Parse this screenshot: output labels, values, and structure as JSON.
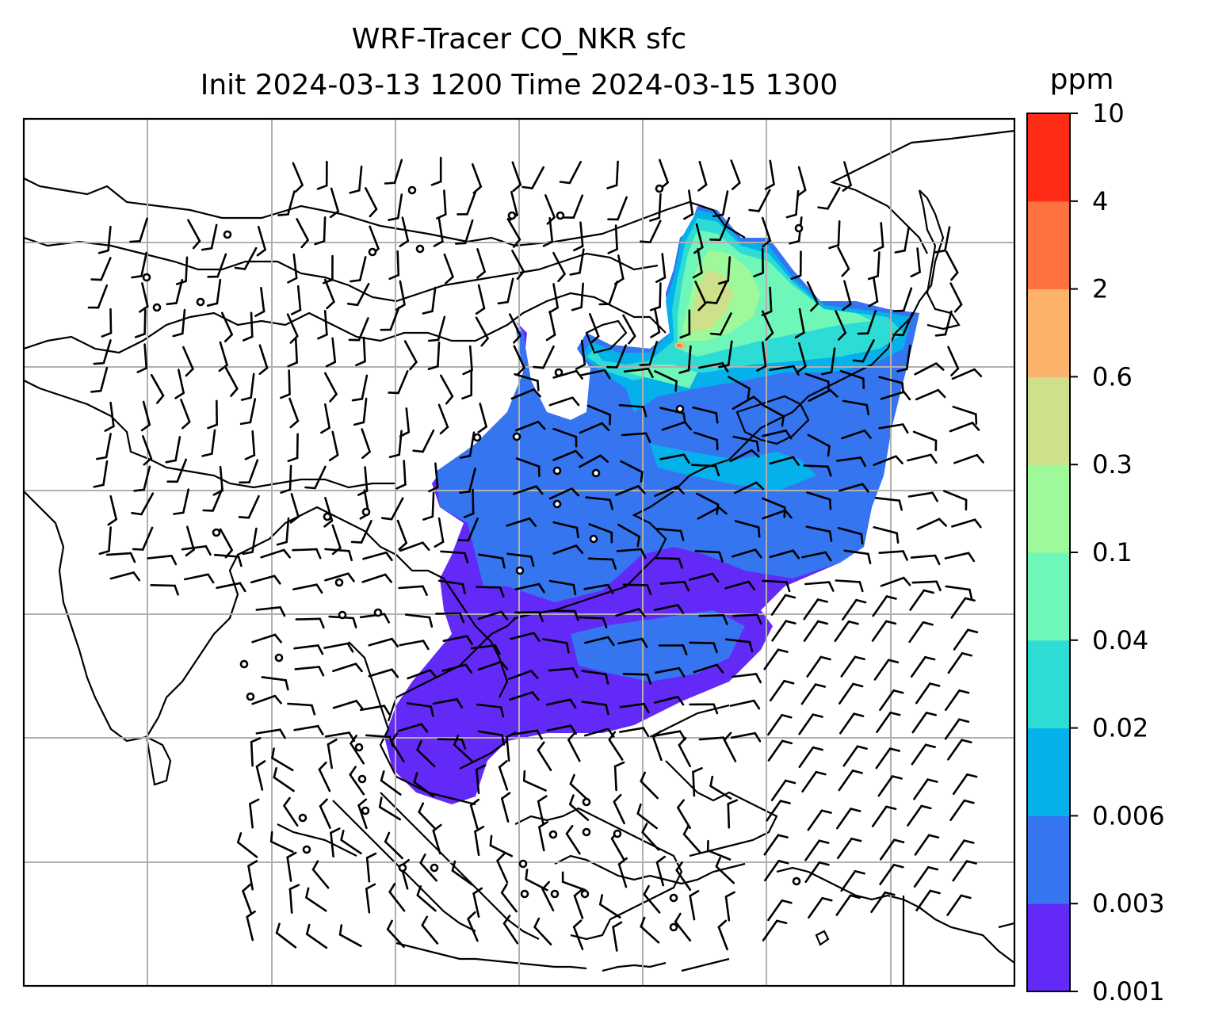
{
  "title": {
    "line1": "WRF-Tracer CO_NKR sfc",
    "line2": "Init 2024-03-13 1200 Time 2024-03-15 1300"
  },
  "colorbar": {
    "unit": "ppm",
    "levels": [
      "0.001",
      "0.003",
      "0.006",
      "0.02",
      "0.04",
      "0.1",
      "0.3",
      "0.6",
      "2",
      "4",
      "10"
    ],
    "colors": [
      "#6329f7",
      "#3575f0",
      "#05b1ea",
      "#2edcd6",
      "#6ef7b9",
      "#9ef99a",
      "#cfe08a",
      "#fdb26b",
      "#ff7240",
      "#ff2b17"
    ]
  },
  "map": {
    "gridlines": true,
    "coastline_color": "#000000",
    "wind_barbs": true
  }
}
